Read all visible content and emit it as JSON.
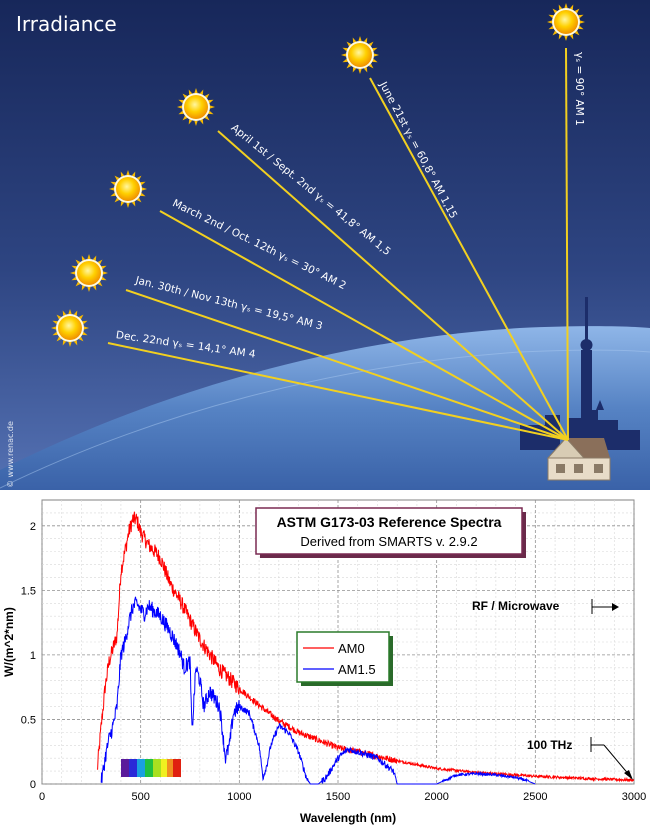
{
  "scene": {
    "title": "Irradiance",
    "credit": "© www.renac.de",
    "rays": [
      {
        "date": "Dec. 22nd",
        "angle_label": "γₛ = 14,1° AM 4"
      },
      {
        "date": "Jan. 30th / Nov 13th",
        "angle_label": "γₛ = 19,5° AM 3"
      },
      {
        "date": "March 2nd / Oct. 12th",
        "angle_label": "γₛ = 30° AM 2"
      },
      {
        "date": "April 1st / Sept. 2nd",
        "angle_label": "γₛ = 41,8° AM 1,5"
      },
      {
        "date": "June 21st",
        "angle_label": "γₛ = 60,8° AM 1,15"
      },
      {
        "date": "",
        "angle_label": "γₛ = 90° AM 1"
      }
    ],
    "colors": {
      "sky_top": "#1a2a5e",
      "sky_bottom": "#4a64a4",
      "ray": "#f2d020",
      "ground": "#5a86c8",
      "skyline": "#1c2f6e"
    }
  },
  "chart_data": {
    "type": "line",
    "title": "ASTM G173-03 Reference Spectra",
    "subtitle": "Derived from SMARTS v. 2.9.2",
    "xlabel": "Wavelength (nm)",
    "ylabel": "W/(m^2*nm)",
    "xlim": [
      0,
      3000
    ],
    "ylim": [
      0,
      2.2
    ],
    "xticks": [
      "0",
      "500",
      "1000",
      "1500",
      "2000",
      "2500",
      "3000"
    ],
    "yticks": [
      "0",
      "0.5",
      "1",
      "1.5",
      "2"
    ],
    "grid": true,
    "legend_position": "center",
    "annotations": [
      "RF / Microwave",
      "100 THz"
    ],
    "series": [
      {
        "name": "AM0",
        "color": "#ff0000",
        "x": [
          280,
          300,
          320,
          340,
          360,
          380,
          400,
          420,
          440,
          460,
          480,
          500,
          520,
          540,
          560,
          600,
          650,
          700,
          750,
          800,
          900,
          1000,
          1100,
          1200,
          1300,
          1400,
          1500,
          1600,
          1800,
          2000,
          2200,
          2500,
          2800,
          3000
        ],
        "y": [
          0.1,
          0.45,
          0.75,
          0.95,
          1.05,
          1.15,
          1.65,
          1.8,
          1.95,
          2.05,
          2.05,
          1.95,
          1.9,
          1.85,
          1.82,
          1.75,
          1.55,
          1.42,
          1.27,
          1.12,
          0.89,
          0.74,
          0.61,
          0.49,
          0.4,
          0.34,
          0.28,
          0.25,
          0.18,
          0.12,
          0.09,
          0.06,
          0.04,
          0.03
        ]
      },
      {
        "name": "AM1.5",
        "color": "#0000ff",
        "x": [
          300,
          320,
          340,
          360,
          380,
          400,
          420,
          440,
          460,
          480,
          500,
          520,
          540,
          560,
          600,
          650,
          700,
          720,
          750,
          760,
          780,
          800,
          820,
          850,
          900,
          930,
          950,
          970,
          1000,
          1050,
          1100,
          1120,
          1140,
          1160,
          1200,
          1250,
          1300,
          1340,
          1360,
          1380,
          1400,
          1440,
          1500,
          1550,
          1600,
          1700,
          1780,
          1800,
          1850,
          1900,
          1950,
          2000,
          2100,
          2200,
          2300,
          2400,
          2450,
          2500
        ],
        "y": [
          0.01,
          0.2,
          0.35,
          0.45,
          0.6,
          1.0,
          1.1,
          1.25,
          1.37,
          1.4,
          1.35,
          1.32,
          1.38,
          1.35,
          1.3,
          1.18,
          1.02,
          0.9,
          0.95,
          0.4,
          0.9,
          0.8,
          0.6,
          0.72,
          0.6,
          0.2,
          0.3,
          0.55,
          0.6,
          0.55,
          0.3,
          0.05,
          0.15,
          0.3,
          0.45,
          0.4,
          0.25,
          0.05,
          0.0,
          0.0,
          0.0,
          0.05,
          0.2,
          0.27,
          0.25,
          0.2,
          0.1,
          0.0,
          0.0,
          0.0,
          0.0,
          0.0,
          0.07,
          0.08,
          0.07,
          0.05,
          0.03,
          0.0
        ]
      }
    ]
  }
}
